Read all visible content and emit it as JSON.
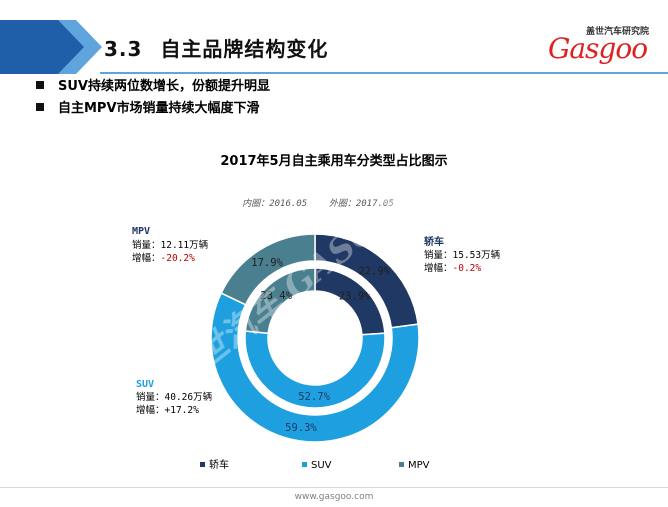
{
  "header": {
    "section_number": "3.3",
    "section_title": "自主品牌结构变化",
    "logo_top": "盖世汽车研究院",
    "logo_word": "Gasgoo",
    "watermark": "盖世汽车 GASGOO",
    "colors": {
      "band_dark": "#1f5ea8",
      "band_light": "#5fa4dc",
      "logo_red": "#d22222"
    }
  },
  "bullets": [
    "SUV持续两位数增长，份额提升明显",
    "自主MPV市场销量持续大幅度下滑"
  ],
  "chart_data": {
    "type": "donut",
    "title": "2017年5月自主乘用车分类型占比图示",
    "ring_legend": "内圈：2016.05    外圈：2017.05",
    "categories": [
      "轿车",
      "SUV",
      "MPV"
    ],
    "colors": [
      "#203864",
      "#1ea0e0",
      "#4a7f8f"
    ],
    "series": [
      {
        "name": "2016.05",
        "ring": "inner",
        "values": [
          23.9,
          52.7,
          23.4
        ],
        "labels": [
          "23.9%",
          "52.7%",
          "23.4%"
        ]
      },
      {
        "name": "2017.05",
        "ring": "outer",
        "values": [
          22.9,
          59.3,
          17.9
        ],
        "labels": [
          "22.9%",
          "59.3%",
          "17.9%"
        ]
      }
    ],
    "annotations": [
      {
        "category": "MPV",
        "title": "MPV",
        "sales": "销量：12.11万辆",
        "growth_label": "增幅：",
        "growth": "-20.2%"
      },
      {
        "category": "轿车",
        "title": "轿车",
        "sales": "销量：15.53万辆",
        "growth_label": "增幅：",
        "growth": "-0.2%"
      },
      {
        "category": "SUV",
        "title": "SUV",
        "sales": "销量：40.26万辆",
        "growth_label": "增幅：",
        "growth": "+17.2%"
      }
    ],
    "legend": [
      "轿车",
      "SUV",
      "MPV"
    ],
    "legend_position": "bottom"
  },
  "footer": {
    "url": "www.gasgoo.com"
  }
}
